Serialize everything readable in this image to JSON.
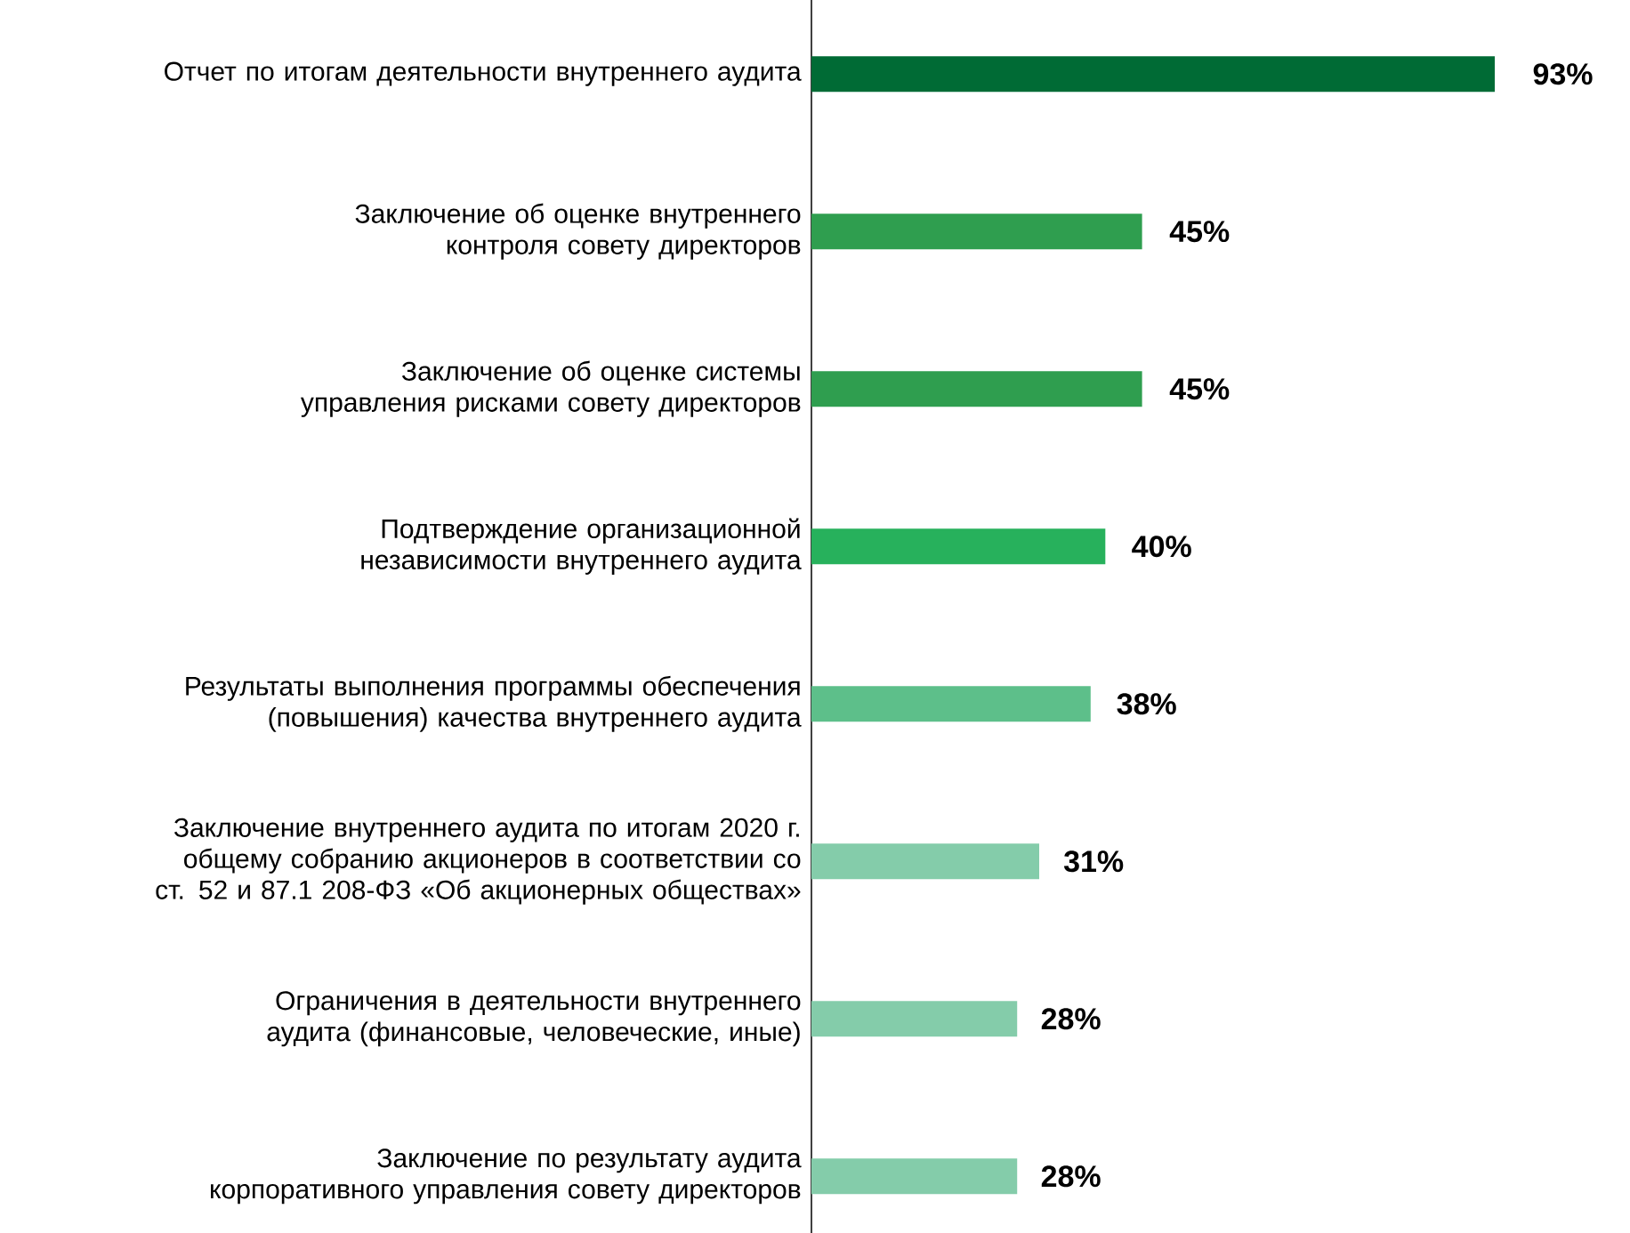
{
  "chart_data": {
    "type": "bar",
    "orientation": "horizontal",
    "categories": [
      "Отчет по итогам деятельности внутреннего аудита",
      "Заключение об оценке внутреннего контроля совету директоров",
      "Заключение об оценке системы управления рисками совету директоров",
      "Подтверждение организационной независимости внутреннего аудита",
      "Результаты выполнения программы обеспечения (повышения) качества внутреннего аудита",
      "Заключение внутреннего аудита по итогам 2020 г. общему собранию акционеров в соответствии со ст. 52 и 87.1 208-ФЗ «Об акционерных обществах»",
      "Ограничения в деятельности внутреннего аудита (финансовые, человеческие, иные)",
      "Заключение по результату аудита корпоративного управления совету директоров"
    ],
    "values": [
      93,
      45,
      45,
      40,
      38,
      31,
      28,
      28
    ],
    "value_labels": [
      "93%",
      "45%",
      "45%",
      "40%",
      "38%",
      "31%",
      "28%",
      "28%"
    ],
    "colors": [
      "#006b35",
      "#2f9e4f",
      "#2f9e4f",
      "#27b15c",
      "#5dbf8a",
      "#84ccaa",
      "#84ccaa",
      "#84ccaa"
    ]
  }
}
